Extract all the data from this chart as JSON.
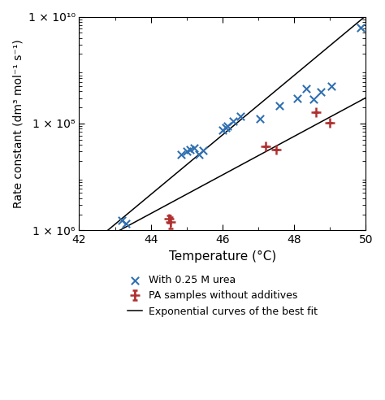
{
  "title": "",
  "xlabel": "Temperature (°C)",
  "ylabel": "Rate constant (dm³ mol⁻¹ s⁻¹)",
  "xlim": [
    42,
    50
  ],
  "xticks": [
    42,
    44,
    46,
    48,
    50
  ],
  "ytick_labels": [
    "1 × 10⁶",
    "1 × 10⁸",
    "1 × 10¹⁰"
  ],
  "ytick_vals": [
    1000000.0,
    100000000.0,
    10000000000.0
  ],
  "pa_x": [
    44.5,
    44.55,
    47.2,
    47.5,
    48.6,
    49.0
  ],
  "pa_y": [
    1650000.0,
    1450000.0,
    38000000.0,
    32000000.0,
    165000000.0,
    105000000.0
  ],
  "pa_xerr": [
    0.0,
    0.0,
    0.0,
    0.0,
    0.0,
    0.0
  ],
  "pa_yerr": [
    250000.0,
    350000.0,
    0,
    0,
    0,
    0
  ],
  "pa_color": "#b03030",
  "urea_x": [
    43.2,
    43.3,
    44.85,
    45.0,
    45.1,
    45.2,
    45.35,
    45.45,
    46.0,
    46.1,
    46.15,
    46.3,
    46.5,
    47.05,
    47.6,
    48.1,
    48.35,
    48.55,
    48.75,
    49.05,
    49.85
  ],
  "urea_y": [
    1550000.0,
    1350000.0,
    26000000.0,
    30000000.0,
    32000000.0,
    35000000.0,
    26000000.0,
    31000000.0,
    75000000.0,
    85000000.0,
    90000000.0,
    110000000.0,
    135000000.0,
    125000000.0,
    215000000.0,
    300000000.0,
    450000000.0,
    290000000.0,
    385000000.0,
    500000000.0,
    6200000000.0
  ],
  "urea_color": "#3070b0",
  "fit_pa_A": 1.8e-19,
  "fit_pa_B": 1.0,
  "fit_urea_A": 1.8e-19,
  "fit_urea_B": 1.0,
  "legend_pa": "PA samples without additives",
  "legend_urea": "With 0.25 M urea",
  "legend_fit": "Exponential curves of the best fit",
  "background_color": "#ffffff"
}
